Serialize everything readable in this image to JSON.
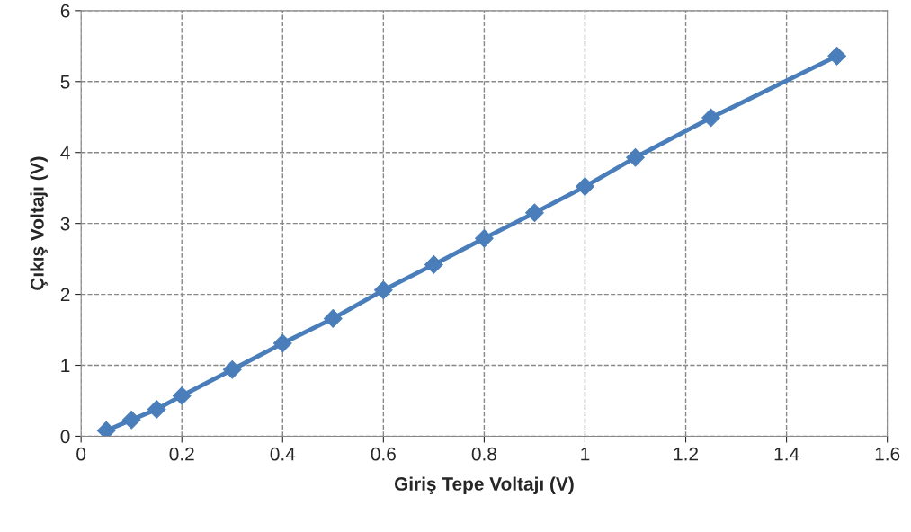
{
  "chart_data": {
    "type": "line",
    "xlabel": "Giriş Tepe Voltajı (V)",
    "ylabel": "Çıkış Voltajı (V)",
    "x": [
      0.05,
      0.1,
      0.15,
      0.2,
      0.3,
      0.4,
      0.5,
      0.6,
      0.7,
      0.8,
      0.9,
      1.0,
      1.1,
      1.25,
      1.5
    ],
    "series": [
      {
        "color": "#4a7ebb",
        "values": [
          0.08,
          0.23,
          0.38,
          0.57,
          0.94,
          1.31,
          1.66,
          2.06,
          2.42,
          2.79,
          3.15,
          3.52,
          3.93,
          4.49,
          5.36
        ]
      }
    ],
    "xlim": [
      0,
      1.6
    ],
    "xticks": [
      0,
      0.2,
      0.4,
      0.6,
      0.8,
      1,
      1.2,
      1.4,
      1.6
    ],
    "ylim": [
      0,
      6
    ],
    "yticks": [
      0,
      1,
      2,
      3,
      4,
      5,
      6
    ],
    "grid": true,
    "marker": "diamond",
    "line_style": "solid",
    "legend": false
  }
}
